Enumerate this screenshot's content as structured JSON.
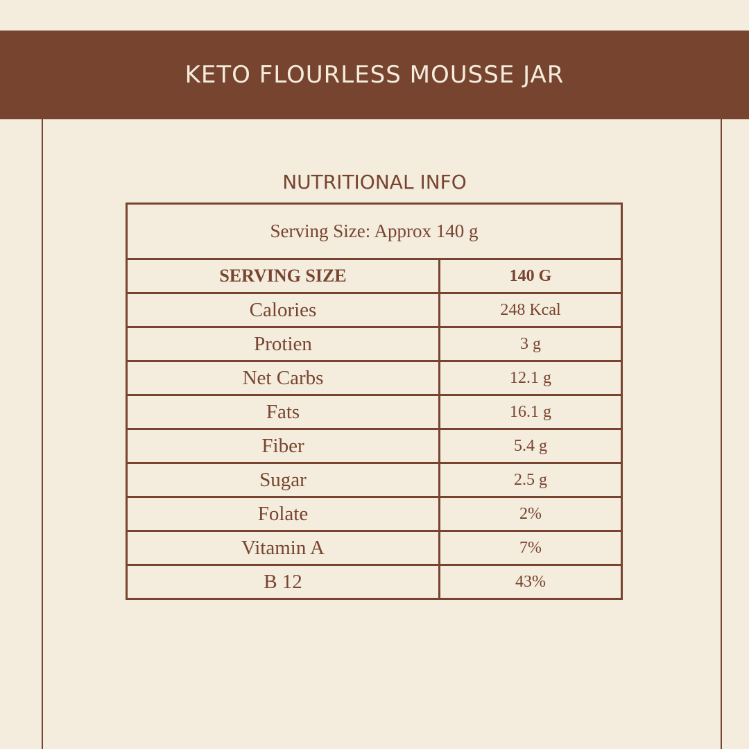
{
  "title": "KETO FLOURLESS MOUSSE JAR",
  "subtitle": "NUTRITIONAL INFO",
  "serving_note": "Serving Size: Approx 140 g",
  "header": {
    "label": "SERVING SIZE",
    "value": "140 G"
  },
  "rows": [
    {
      "label": "Calories",
      "value": "248 Kcal"
    },
    {
      "label": "Protien",
      "value": "3 g"
    },
    {
      "label": "Net Carbs",
      "value": "12.1 g"
    },
    {
      "label": "Fats",
      "value": "16.1 g"
    },
    {
      "label": "Fiber",
      "value": "5.4 g"
    },
    {
      "label": "Sugar",
      "value": "2.5 g"
    },
    {
      "label": "Folate",
      "value": "2%"
    },
    {
      "label": "Vitamin A",
      "value": "7%"
    },
    {
      "label": "B 12",
      "value": "43%"
    }
  ],
  "colors": {
    "brand": "#774430",
    "background": "#f4ecdc"
  }
}
